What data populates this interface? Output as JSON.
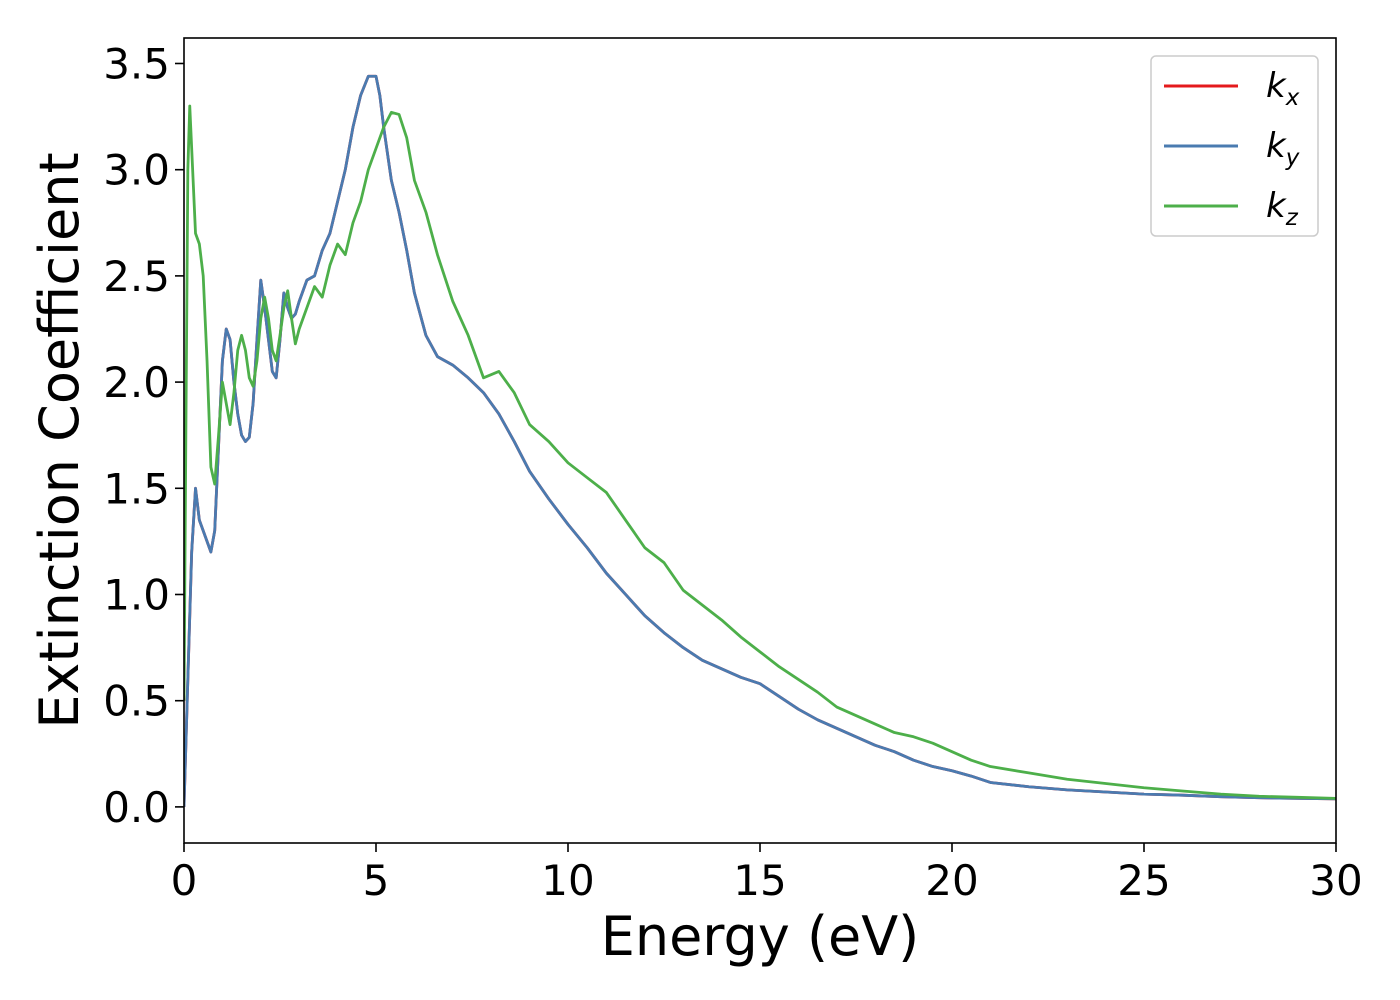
{
  "chart_data": {
    "type": "line",
    "xlabel": "Energy (eV)",
    "ylabel": "Extinction Coefficient",
    "xlim": [
      0,
      30
    ],
    "ylim": [
      -0.17,
      3.62
    ],
    "xticks": [
      0,
      5,
      10,
      15,
      20,
      25,
      30
    ],
    "yticks": [
      0.0,
      0.5,
      1.0,
      1.5,
      2.0,
      2.5,
      3.0,
      3.5
    ],
    "xtick_labels": [
      "0",
      "5",
      "10",
      "15",
      "20",
      "25",
      "30"
    ],
    "ytick_labels": [
      "0.0",
      "0.5",
      "1.0",
      "1.5",
      "2.0",
      "2.5",
      "3.0",
      "3.5"
    ],
    "grid": false,
    "legend_position": "top-right",
    "series": [
      {
        "name": "k_x",
        "label_base": "k",
        "label_sub": "x",
        "color": "#e41a1c",
        "x": [
          0,
          0.1,
          0.2,
          0.3,
          0.4,
          0.5,
          0.6,
          0.7,
          0.8,
          0.9,
          1.0,
          1.1,
          1.2,
          1.3,
          1.4,
          1.5,
          1.6,
          1.7,
          1.8,
          1.9,
          2.0,
          2.1,
          2.2,
          2.3,
          2.4,
          2.5,
          2.6,
          2.7,
          2.8,
          2.9,
          3.0,
          3.2,
          3.4,
          3.6,
          3.8,
          4.0,
          4.2,
          4.4,
          4.6,
          4.8,
          5.0,
          5.1,
          5.2,
          5.4,
          5.6,
          5.8,
          6.0,
          6.3,
          6.6,
          7.0,
          7.4,
          7.8,
          8.2,
          8.6,
          9.0,
          9.5,
          10.0,
          10.5,
          11.0,
          11.5,
          12.0,
          12.5,
          13.0,
          13.5,
          14.0,
          14.5,
          15.0,
          15.5,
          16.0,
          16.5,
          17.0,
          17.5,
          18.0,
          18.5,
          19.0,
          19.5,
          20.0,
          20.5,
          21.0,
          22.0,
          23.0,
          24.0,
          25.0,
          26.0,
          27.0,
          28.0,
          29.0,
          30.0
        ],
        "values": [
          0.0,
          0.6,
          1.2,
          1.5,
          1.35,
          1.3,
          1.25,
          1.2,
          1.3,
          1.7,
          2.1,
          2.25,
          2.2,
          2.0,
          1.85,
          1.75,
          1.72,
          1.74,
          1.9,
          2.2,
          2.48,
          2.35,
          2.2,
          2.05,
          2.02,
          2.2,
          2.42,
          2.35,
          2.3,
          2.32,
          2.38,
          2.48,
          2.5,
          2.62,
          2.7,
          2.85,
          3.0,
          3.2,
          3.35,
          3.44,
          3.44,
          3.35,
          3.2,
          2.95,
          2.8,
          2.62,
          2.42,
          2.22,
          2.12,
          2.08,
          2.02,
          1.95,
          1.85,
          1.72,
          1.58,
          1.45,
          1.33,
          1.22,
          1.1,
          1.0,
          0.9,
          0.82,
          0.75,
          0.69,
          0.65,
          0.61,
          0.58,
          0.52,
          0.46,
          0.41,
          0.37,
          0.33,
          0.29,
          0.26,
          0.22,
          0.19,
          0.17,
          0.145,
          0.115,
          0.095,
          0.08,
          0.07,
          0.06,
          0.055,
          0.048,
          0.043,
          0.04,
          0.038
        ]
      },
      {
        "name": "k_y",
        "label_base": "k",
        "label_sub": "y",
        "color": "#4a7bb0",
        "x": [
          0,
          0.1,
          0.2,
          0.3,
          0.4,
          0.5,
          0.6,
          0.7,
          0.8,
          0.9,
          1.0,
          1.1,
          1.2,
          1.3,
          1.4,
          1.5,
          1.6,
          1.7,
          1.8,
          1.9,
          2.0,
          2.1,
          2.2,
          2.3,
          2.4,
          2.5,
          2.6,
          2.7,
          2.8,
          2.9,
          3.0,
          3.2,
          3.4,
          3.6,
          3.8,
          4.0,
          4.2,
          4.4,
          4.6,
          4.8,
          5.0,
          5.1,
          5.2,
          5.4,
          5.6,
          5.8,
          6.0,
          6.3,
          6.6,
          7.0,
          7.4,
          7.8,
          8.2,
          8.6,
          9.0,
          9.5,
          10.0,
          10.5,
          11.0,
          11.5,
          12.0,
          12.5,
          13.0,
          13.5,
          14.0,
          14.5,
          15.0,
          15.5,
          16.0,
          16.5,
          17.0,
          17.5,
          18.0,
          18.5,
          19.0,
          19.5,
          20.0,
          20.5,
          21.0,
          22.0,
          23.0,
          24.0,
          25.0,
          26.0,
          27.0,
          28.0,
          29.0,
          30.0
        ],
        "values": [
          0.0,
          0.6,
          1.2,
          1.5,
          1.35,
          1.3,
          1.25,
          1.2,
          1.3,
          1.7,
          2.1,
          2.25,
          2.2,
          2.0,
          1.85,
          1.75,
          1.72,
          1.74,
          1.9,
          2.2,
          2.48,
          2.35,
          2.2,
          2.05,
          2.02,
          2.2,
          2.42,
          2.35,
          2.3,
          2.32,
          2.38,
          2.48,
          2.5,
          2.62,
          2.7,
          2.85,
          3.0,
          3.2,
          3.35,
          3.44,
          3.44,
          3.35,
          3.2,
          2.95,
          2.8,
          2.62,
          2.42,
          2.22,
          2.12,
          2.08,
          2.02,
          1.95,
          1.85,
          1.72,
          1.58,
          1.45,
          1.33,
          1.22,
          1.1,
          1.0,
          0.9,
          0.82,
          0.75,
          0.69,
          0.65,
          0.61,
          0.58,
          0.52,
          0.46,
          0.41,
          0.37,
          0.33,
          0.29,
          0.26,
          0.22,
          0.19,
          0.17,
          0.145,
          0.115,
          0.095,
          0.08,
          0.07,
          0.06,
          0.055,
          0.048,
          0.043,
          0.04,
          0.038
        ]
      },
      {
        "name": "k_z",
        "label_base": "k",
        "label_sub": "z",
        "color": "#4daf4a",
        "x": [
          0,
          0.05,
          0.1,
          0.15,
          0.2,
          0.3,
          0.4,
          0.5,
          0.6,
          0.7,
          0.8,
          0.9,
          1.0,
          1.1,
          1.2,
          1.3,
          1.4,
          1.5,
          1.6,
          1.7,
          1.8,
          1.9,
          2.0,
          2.1,
          2.2,
          2.3,
          2.4,
          2.5,
          2.6,
          2.7,
          2.8,
          2.9,
          3.0,
          3.2,
          3.4,
          3.6,
          3.8,
          4.0,
          4.2,
          4.4,
          4.6,
          4.8,
          5.0,
          5.2,
          5.4,
          5.6,
          5.8,
          6.0,
          6.3,
          6.6,
          7.0,
          7.4,
          7.8,
          8.2,
          8.6,
          9.0,
          9.5,
          10.0,
          10.5,
          11.0,
          11.5,
          12.0,
          12.5,
          13.0,
          13.5,
          14.0,
          14.5,
          15.0,
          15.5,
          16.0,
          16.5,
          17.0,
          17.5,
          18.0,
          18.5,
          19.0,
          19.5,
          20.0,
          20.5,
          21.0,
          22.0,
          23.0,
          24.0,
          25.0,
          26.0,
          27.0,
          28.0,
          29.0,
          30.0
        ],
        "values": [
          0.5,
          1.8,
          3.0,
          3.3,
          3.1,
          2.7,
          2.65,
          2.5,
          2.1,
          1.6,
          1.52,
          1.75,
          2.0,
          1.9,
          1.8,
          1.95,
          2.15,
          2.22,
          2.15,
          2.02,
          1.98,
          2.1,
          2.3,
          2.4,
          2.3,
          2.15,
          2.1,
          2.22,
          2.35,
          2.43,
          2.3,
          2.18,
          2.25,
          2.35,
          2.45,
          2.4,
          2.55,
          2.65,
          2.6,
          2.75,
          2.85,
          3.0,
          3.1,
          3.2,
          3.27,
          3.26,
          3.15,
          2.95,
          2.8,
          2.6,
          2.38,
          2.22,
          2.02,
          2.05,
          1.95,
          1.8,
          1.72,
          1.62,
          1.55,
          1.48,
          1.35,
          1.22,
          1.15,
          1.02,
          0.95,
          0.88,
          0.8,
          0.73,
          0.66,
          0.6,
          0.54,
          0.47,
          0.43,
          0.39,
          0.35,
          0.33,
          0.3,
          0.26,
          0.22,
          0.19,
          0.16,
          0.13,
          0.11,
          0.09,
          0.075,
          0.06,
          0.05,
          0.045,
          0.04
        ]
      }
    ]
  }
}
